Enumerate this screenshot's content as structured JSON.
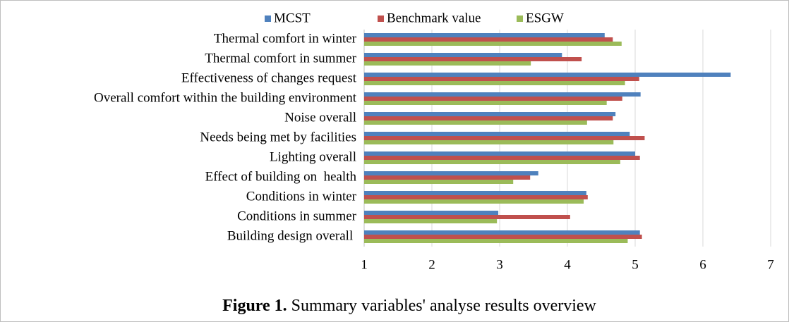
{
  "chart_data": {
    "type": "hbar",
    "caption_label": "Figure 1.",
    "caption": "Summary variables' analyse results overview",
    "categories": [
      "Thermal comfort in winter",
      "Thermal comfort in summer",
      "Effectiveness of changes request",
      "Overall comfort within the building environment",
      "Noise overall",
      "Needs being met by facilities",
      "Lighting overall",
      "Effect of building on  health",
      "Conditions in winter",
      "Conditions in summer",
      "Building design overall "
    ],
    "series": [
      {
        "name": "MCST",
        "color": "#4f81bd",
        "values": [
          4.55,
          3.92,
          6.41,
          5.08,
          4.71,
          4.92,
          5.0,
          3.57,
          4.28,
          2.98,
          5.07
        ]
      },
      {
        "name": "Benchmark value",
        "color": "#c0504d",
        "values": [
          4.67,
          4.21,
          5.06,
          4.81,
          4.67,
          5.14,
          5.07,
          3.45,
          4.3,
          4.04,
          5.1
        ]
      },
      {
        "name": "ESGW",
        "color": "#9bbb59",
        "values": [
          4.8,
          3.46,
          4.85,
          4.58,
          4.29,
          4.68,
          4.78,
          3.2,
          4.24,
          2.96,
          4.89
        ]
      }
    ],
    "xlim": [
      1,
      7
    ],
    "xticks": [
      1,
      2,
      3,
      4,
      5,
      6,
      7
    ],
    "grid": true,
    "legend": "top"
  }
}
